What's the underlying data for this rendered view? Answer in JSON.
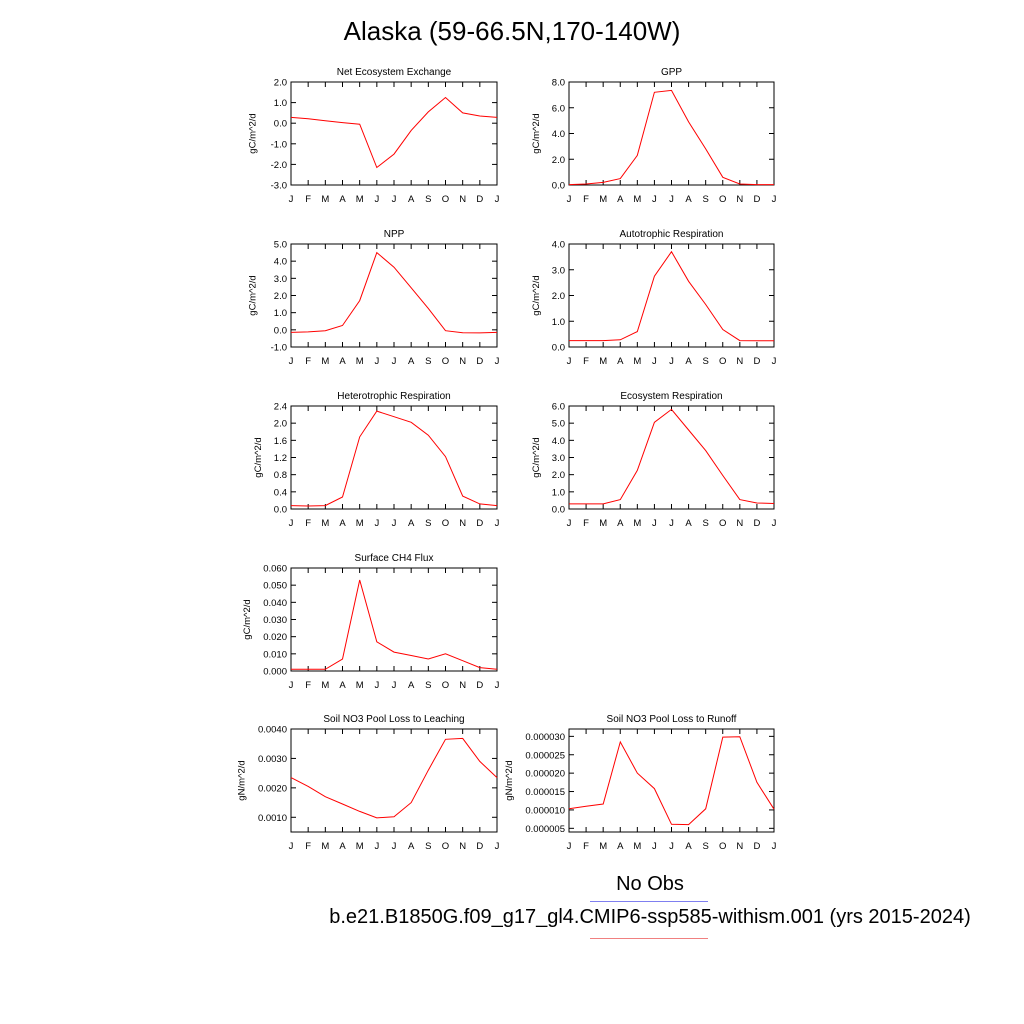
{
  "title": "Alaska (59-66.5N,170-140W)",
  "legend": {
    "obs_label": "No Obs",
    "model_label": "b.e21.B1850G.f09_g17_gl4.CMIP6-ssp585-withism.001 (yrs 2015-2024)",
    "obs_color": "#7f7ff0",
    "model_color": "#f08080"
  },
  "chart_data": [
    {
      "type": "line",
      "title": "Net Ecosystem Exchange",
      "ylabel": "gC/m^2/d",
      "categories": [
        "J",
        "F",
        "M",
        "A",
        "M",
        "J",
        "J",
        "A",
        "S",
        "O",
        "N",
        "D",
        "J"
      ],
      "ylim": [
        -3.0,
        2.0
      ],
      "yticks": [
        -3.0,
        -2.0,
        -1.0,
        0.0,
        1.0,
        2.0
      ],
      "ytick_labels": [
        "-3.0",
        "-2.0",
        "-1.0",
        "0.0",
        "1.0",
        "2.0"
      ],
      "series": [
        {
          "color": "#ff0000",
          "values": [
            0.28,
            0.22,
            0.12,
            0.03,
            -0.05,
            -2.15,
            -1.5,
            -0.35,
            0.55,
            1.25,
            0.5,
            0.35,
            0.28
          ]
        }
      ]
    },
    {
      "type": "line",
      "title": "GPP",
      "ylabel": "gC/m^2/d",
      "categories": [
        "J",
        "F",
        "M",
        "A",
        "M",
        "J",
        "J",
        "A",
        "S",
        "O",
        "N",
        "D",
        "J"
      ],
      "ylim": [
        0.0,
        8.0
      ],
      "yticks": [
        0.0,
        2.0,
        4.0,
        6.0,
        8.0
      ],
      "ytick_labels": [
        "0.0",
        "2.0",
        "4.0",
        "6.0",
        "8.0"
      ],
      "series": [
        {
          "color": "#ff0000",
          "values": [
            0.03,
            0.08,
            0.2,
            0.5,
            2.3,
            7.2,
            7.35,
            4.9,
            2.8,
            0.6,
            0.08,
            0.03,
            0.03
          ]
        }
      ]
    },
    {
      "type": "line",
      "title": "NPP",
      "ylabel": "gC/m^2/d",
      "categories": [
        "J",
        "F",
        "M",
        "A",
        "M",
        "J",
        "J",
        "A",
        "S",
        "O",
        "N",
        "D",
        "J"
      ],
      "ylim": [
        -1.0,
        5.0
      ],
      "yticks": [
        -1.0,
        0.0,
        1.0,
        2.0,
        3.0,
        4.0,
        5.0
      ],
      "ytick_labels": [
        "-1.0",
        "0.0",
        "1.0",
        "2.0",
        "3.0",
        "4.0",
        "5.0"
      ],
      "series": [
        {
          "color": "#ff0000",
          "values": [
            -0.15,
            -0.12,
            -0.05,
            0.25,
            1.7,
            4.5,
            3.65,
            2.45,
            1.25,
            -0.05,
            -0.17,
            -0.18,
            -0.15
          ]
        }
      ]
    },
    {
      "type": "line",
      "title": "Autotrophic Respiration",
      "ylabel": "gC/m^2/d",
      "categories": [
        "J",
        "F",
        "M",
        "A",
        "M",
        "J",
        "J",
        "A",
        "S",
        "O",
        "N",
        "D",
        "J"
      ],
      "ylim": [
        0.0,
        4.0
      ],
      "yticks": [
        0.0,
        1.0,
        2.0,
        3.0,
        4.0
      ],
      "ytick_labels": [
        "0.0",
        "1.0",
        "2.0",
        "3.0",
        "4.0"
      ],
      "series": [
        {
          "color": "#ff0000",
          "values": [
            0.25,
            0.25,
            0.25,
            0.28,
            0.6,
            2.75,
            3.7,
            2.55,
            1.65,
            0.68,
            0.25,
            0.24,
            0.24
          ]
        }
      ]
    },
    {
      "type": "line",
      "title": "Heterotrophic Respiration",
      "ylabel": "gC/m^2/d",
      "categories": [
        "J",
        "F",
        "M",
        "A",
        "M",
        "J",
        "J",
        "A",
        "S",
        "O",
        "N",
        "D",
        "J"
      ],
      "ylim": [
        0.0,
        2.4
      ],
      "yticks": [
        0.0,
        0.4,
        0.8,
        1.2,
        1.6,
        2.0,
        2.4
      ],
      "ytick_labels": [
        "0.0",
        "0.4",
        "0.8",
        "1.2",
        "1.6",
        "2.0",
        "2.4"
      ],
      "series": [
        {
          "color": "#ff0000",
          "values": [
            0.08,
            0.07,
            0.08,
            0.28,
            1.68,
            2.28,
            2.15,
            2.02,
            1.72,
            1.22,
            0.3,
            0.12,
            0.08
          ]
        }
      ]
    },
    {
      "type": "line",
      "title": "Ecosystem Respiration",
      "ylabel": "gC/m^2/d",
      "categories": [
        "J",
        "F",
        "M",
        "A",
        "M",
        "J",
        "J",
        "A",
        "S",
        "O",
        "N",
        "D",
        "J"
      ],
      "ylim": [
        0.0,
        6.0
      ],
      "yticks": [
        0.0,
        1.0,
        2.0,
        3.0,
        4.0,
        5.0,
        6.0
      ],
      "ytick_labels": [
        "0.0",
        "1.0",
        "2.0",
        "3.0",
        "4.0",
        "5.0",
        "6.0"
      ],
      "series": [
        {
          "color": "#ff0000",
          "values": [
            0.3,
            0.3,
            0.3,
            0.55,
            2.25,
            5.05,
            5.8,
            4.6,
            3.4,
            1.95,
            0.55,
            0.35,
            0.32
          ]
        }
      ]
    },
    {
      "type": "line",
      "title": "Surface CH4 Flux",
      "ylabel": "gC/m^2/d",
      "categories": [
        "J",
        "F",
        "M",
        "A",
        "M",
        "J",
        "J",
        "A",
        "S",
        "O",
        "N",
        "D",
        "J"
      ],
      "ylim": [
        0.0,
        0.06
      ],
      "yticks": [
        0.0,
        0.01,
        0.02,
        0.03,
        0.04,
        0.05,
        0.06
      ],
      "ytick_labels": [
        "0.000",
        "0.010",
        "0.020",
        "0.030",
        "0.040",
        "0.050",
        "0.060"
      ],
      "series": [
        {
          "color": "#ff0000",
          "values": [
            0.001,
            0.001,
            0.001,
            0.007,
            0.053,
            0.017,
            0.011,
            0.009,
            0.007,
            0.01,
            0.006,
            0.002,
            0.001
          ]
        }
      ]
    },
    {
      "type": "line",
      "title": "Soil NO3 Pool Loss to Leaching",
      "ylabel": "gN/m^2/d",
      "categories": [
        "J",
        "F",
        "M",
        "A",
        "M",
        "J",
        "J",
        "A",
        "S",
        "O",
        "N",
        "D",
        "J"
      ],
      "ylim": [
        0.0005,
        0.004
      ],
      "yticks": [
        0.001,
        0.002,
        0.003,
        0.004
      ],
      "ytick_labels": [
        "0.0010",
        "0.0020",
        "0.0030",
        "0.0040"
      ],
      "series": [
        {
          "color": "#ff0000",
          "values": [
            0.00235,
            0.00205,
            0.0017,
            0.00145,
            0.0012,
            0.00098,
            0.00102,
            0.0015,
            0.0026,
            0.00365,
            0.00368,
            0.0029,
            0.00235
          ]
        }
      ]
    },
    {
      "type": "line",
      "title": "Soil NO3 Pool Loss to Runoff",
      "ylabel": "gN/m^2/d",
      "categories": [
        "J",
        "F",
        "M",
        "A",
        "M",
        "J",
        "J",
        "A",
        "S",
        "O",
        "N",
        "D",
        "J"
      ],
      "ylim": [
        4e-06,
        3.2e-05
      ],
      "yticks": [
        5e-06,
        1e-05,
        1.5e-05,
        2e-05,
        2.5e-05,
        3e-05
      ],
      "ytick_labels": [
        "0.000005",
        "0.000010",
        "0.000015",
        "0.000020",
        "0.000025",
        "0.000030"
      ],
      "series": [
        {
          "color": "#ff0000",
          "values": [
            1.03e-05,
            1.1e-05,
            1.16e-05,
            2.85e-05,
            2e-05,
            1.58e-05,
            6.1e-06,
            6e-06,
            1.03e-05,
            2.98e-05,
            2.99e-05,
            1.75e-05,
            1.02e-05
          ]
        }
      ]
    }
  ]
}
